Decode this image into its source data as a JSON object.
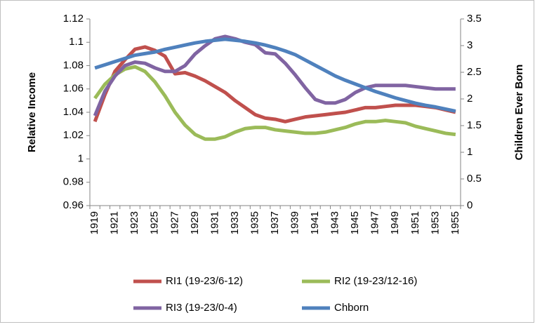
{
  "chart_data": {
    "type": "line",
    "categories": [
      "1919",
      null,
      "1921",
      null,
      "1923",
      null,
      "1925",
      null,
      "1927",
      null,
      "1929",
      null,
      "1931",
      null,
      "1933",
      null,
      "1935",
      null,
      "1937",
      null,
      "1939",
      null,
      "1941",
      null,
      "1943",
      null,
      "1945",
      null,
      "1947",
      null,
      "1949",
      null,
      "1951",
      null,
      "1953",
      null,
      "1955"
    ],
    "y_label": "Relative Income",
    "y2_label": "Children Ever Born",
    "ylim": [
      0.96,
      1.12
    ],
    "yticks": [
      0.96,
      0.98,
      1,
      1.02,
      1.04,
      1.06,
      1.08,
      1.1,
      1.12
    ],
    "y2lim": [
      0,
      3.5
    ],
    "y2ticks": [
      0,
      0.5,
      1,
      1.5,
      2,
      2.5,
      3,
      3.5
    ],
    "grid": false,
    "legend": "bottom",
    "series": [
      {
        "name": "RI1 (19-23/6-12)",
        "color": "#c0504d",
        "values": [
          1.032,
          1.055,
          1.075,
          1.085,
          1.094,
          1.096,
          1.093,
          1.088,
          1.073,
          1.074,
          1.071,
          1.067,
          1.062,
          1.057,
          1.05,
          1.044,
          1.038,
          1.035,
          1.034,
          1.032,
          1.034,
          1.036,
          1.037,
          1.038,
          1.039,
          1.04,
          1.042,
          1.044,
          1.044,
          1.045,
          1.046,
          1.046,
          1.046,
          1.045,
          1.044,
          1.042,
          1.04
        ]
      },
      {
        "name": "RI2 (19-23/12-16)",
        "color": "#9bbb59",
        "values": [
          1.052,
          1.064,
          1.072,
          1.077,
          1.079,
          1.075,
          1.066,
          1.054,
          1.04,
          1.029,
          1.021,
          1.017,
          1.017,
          1.019,
          1.023,
          1.026,
          1.027,
          1.027,
          1.025,
          1.024,
          1.023,
          1.022,
          1.022,
          1.023,
          1.025,
          1.027,
          1.03,
          1.032,
          1.032,
          1.033,
          1.032,
          1.031,
          1.028,
          1.026,
          1.024,
          1.022,
          1.021
        ]
      },
      {
        "name": "RI3 (19-23/0-4)",
        "color": "#8064a2",
        "values": [
          1.037,
          1.058,
          1.071,
          1.08,
          1.083,
          1.082,
          1.078,
          1.075,
          1.075,
          1.08,
          1.09,
          1.097,
          1.103,
          1.105,
          1.103,
          1.1,
          1.098,
          1.091,
          1.09,
          1.082,
          1.072,
          1.061,
          1.051,
          1.048,
          1.048,
          1.051,
          1.057,
          1.061,
          1.063,
          1.063,
          1.063,
          1.063,
          1.062,
          1.061,
          1.06,
          1.06,
          1.06
        ]
      },
      {
        "name": "Chborn",
        "color": "#4f81bd",
        "axis": "y2",
        "values": [
          2.58,
          2.64,
          2.7,
          2.76,
          2.82,
          2.85,
          2.88,
          2.93,
          2.97,
          3.01,
          3.05,
          3.08,
          3.1,
          3.12,
          3.1,
          3.08,
          3.05,
          3.01,
          2.96,
          2.9,
          2.83,
          2.73,
          2.63,
          2.53,
          2.43,
          2.35,
          2.28,
          2.21,
          2.14,
          2.08,
          2.02,
          1.97,
          1.92,
          1.88,
          1.85,
          1.81,
          1.77
        ]
      }
    ]
  }
}
